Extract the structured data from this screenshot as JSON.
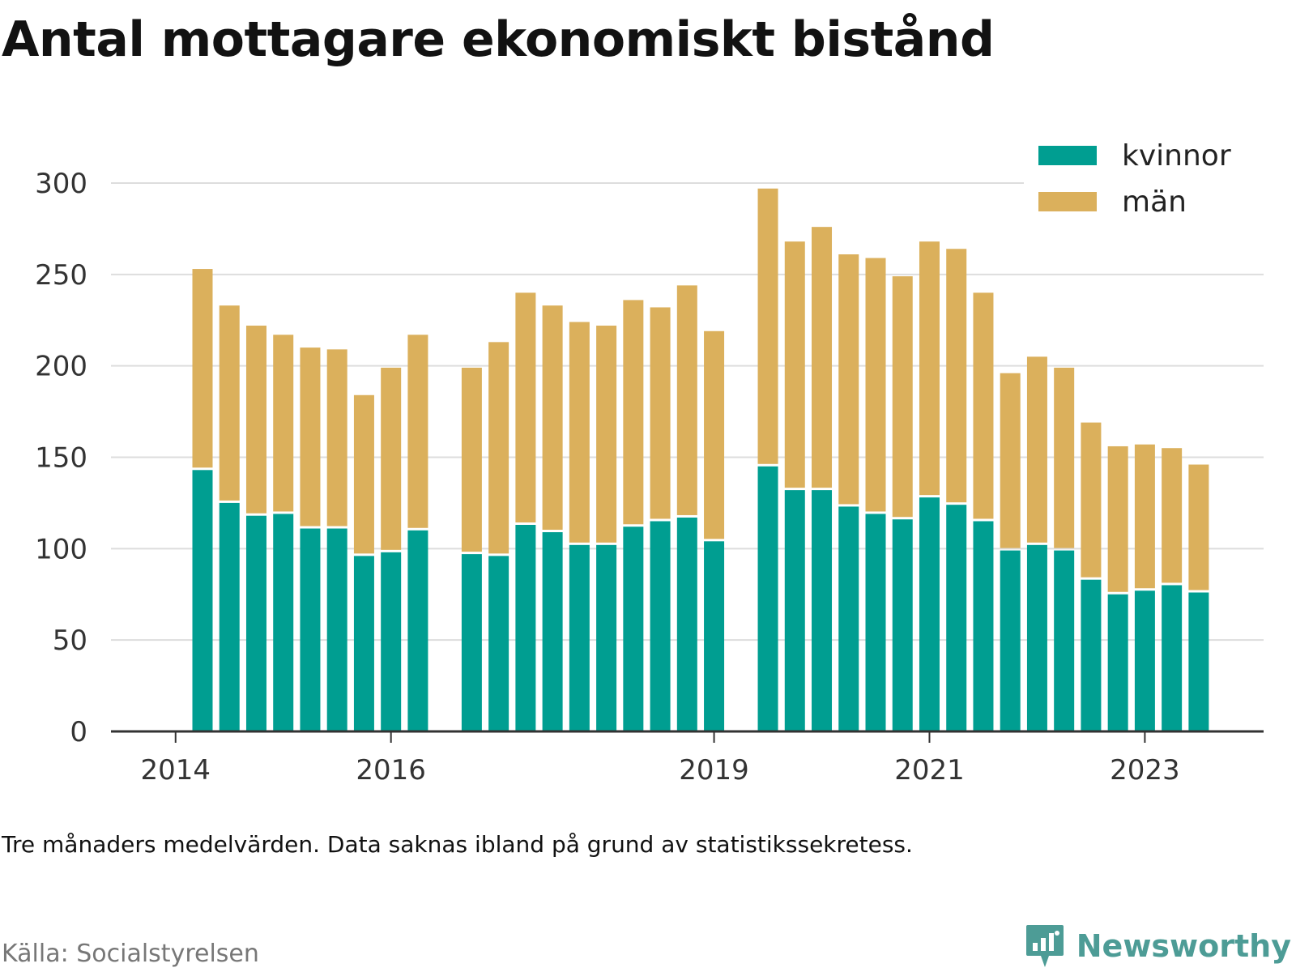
{
  "title": "Antal mottagare ekonomiskt bistånd",
  "note": "Tre månaders medelvärden. Data saknas ibland på grund av statistikssekretess.",
  "source": "Källa: Socialstyrelsen",
  "brand": {
    "name": "Newsworthy",
    "icon": "newsworthy-logo-icon",
    "color": "#4d9c96"
  },
  "chart_data": {
    "type": "bar",
    "stacked": true,
    "ylim": [
      0,
      300
    ],
    "yticks": [
      0,
      50,
      100,
      150,
      200,
      250,
      300
    ],
    "grid": true,
    "legend_position": "top-right",
    "xticks": [
      {
        "label": "2014",
        "at": -1
      },
      {
        "label": "2016",
        "at": 7
      },
      {
        "label": "2019",
        "at": 19
      },
      {
        "label": "2021",
        "at": 27
      },
      {
        "label": "2023",
        "at": 35
      }
    ],
    "bar_slots": 40,
    "series": [
      {
        "name": "kvinnor",
        "color": "#009e91",
        "values": [
          143,
          125,
          118,
          119,
          111,
          111,
          96,
          98,
          110,
          null,
          97,
          96,
          113,
          109,
          102,
          102,
          112,
          115,
          117,
          104,
          null,
          145,
          132,
          132,
          123,
          119,
          116,
          128,
          124,
          115,
          99,
          102,
          99,
          83,
          75,
          77,
          80,
          76
        ]
      },
      {
        "name": "män",
        "color": "#dbb05c",
        "values": [
          110,
          108,
          104,
          98,
          99,
          98,
          88,
          101,
          107,
          null,
          102,
          117,
          127,
          124,
          122,
          120,
          124,
          117,
          127,
          115,
          null,
          152,
          136,
          144,
          138,
          140,
          133,
          140,
          140,
          125,
          97,
          103,
          100,
          86,
          81,
          80,
          75,
          70
        ]
      }
    ]
  }
}
